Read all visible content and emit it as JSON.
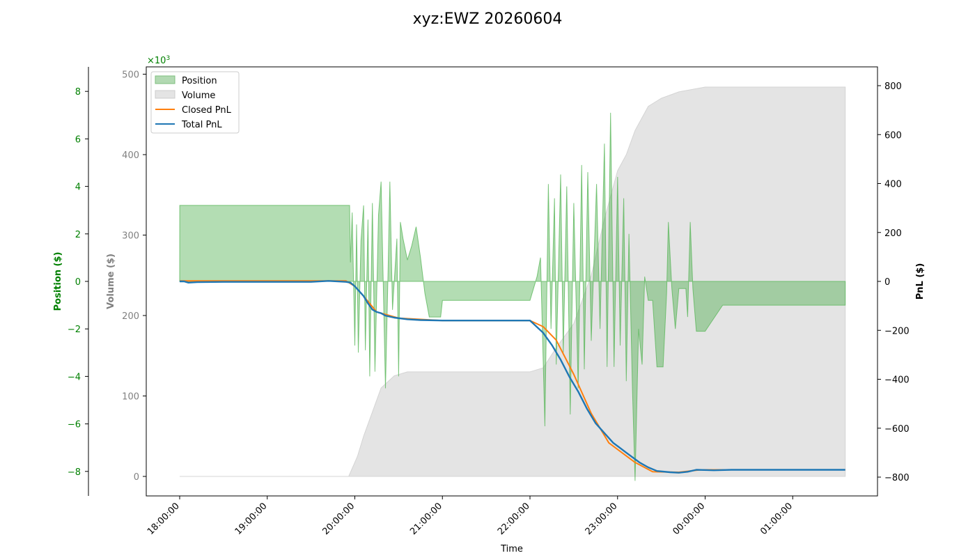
{
  "chart_data": {
    "type": "area",
    "title": "xyz:EWZ 20260604",
    "xlabel": "Time",
    "x_ticks": [
      "18:00:00",
      "19:00:00",
      "20:00:00",
      "21:00:00",
      "22:00:00",
      "23:00:00",
      "00:00:00",
      "01:00:00"
    ],
    "axes": {
      "position": {
        "label": "Position ($)",
        "ticks": [
          "8",
          "6",
          "4",
          "2",
          "0",
          "−2",
          "−4",
          "−6",
          "−8"
        ],
        "multiplier_label": "×10",
        "multiplier_exp": "3",
        "color": "#008000"
      },
      "volume": {
        "label": "Volume ($)",
        "ticks": [
          "500",
          "400",
          "300",
          "200",
          "100",
          "0"
        ],
        "color": "#808080"
      },
      "pnl": {
        "label": "PnL ($)",
        "ticks": [
          "800",
          "600",
          "400",
          "200",
          "0",
          "−200",
          "−400",
          "−600",
          "−800"
        ],
        "color": "#000000"
      }
    },
    "legend": {
      "placement": "upper-left",
      "items": [
        {
          "label": "Position",
          "kind": "patch",
          "fill": "#b2d9b2",
          "stroke": "#7fbf7f"
        },
        {
          "label": "Volume",
          "kind": "patch",
          "fill": "#e4e4e4",
          "stroke": "#cccccc"
        },
        {
          "label": "Closed PnL",
          "kind": "line",
          "color": "#ff7f0e"
        },
        {
          "label": "Total PnL",
          "kind": "line",
          "color": "#1f77b4"
        }
      ]
    },
    "series": [
      {
        "name": "Volume",
        "units": "volume_$",
        "color": "#e4e4e4",
        "points": [
          [
            0,
            0
          ],
          [
            1.93,
            0
          ],
          [
            1.97,
            10
          ],
          [
            2.03,
            25
          ],
          [
            2.1,
            50
          ],
          [
            2.2,
            80
          ],
          [
            2.3,
            110
          ],
          [
            2.45,
            125
          ],
          [
            2.6,
            130
          ],
          [
            3.0,
            130
          ],
          [
            4.0,
            130
          ],
          [
            4.15,
            135
          ],
          [
            4.3,
            160
          ],
          [
            4.5,
            190
          ],
          [
            4.7,
            250
          ],
          [
            4.85,
            320
          ],
          [
            5.0,
            380
          ],
          [
            5.1,
            400
          ],
          [
            5.2,
            430
          ],
          [
            5.35,
            460
          ],
          [
            5.5,
            470
          ],
          [
            5.7,
            478
          ],
          [
            6.0,
            484
          ],
          [
            7.6,
            484
          ]
        ]
      },
      {
        "name": "Position",
        "units": "position_k$",
        "color": "#b2d9b2",
        "points": [
          [
            0,
            0
          ],
          [
            0.001,
            3.2
          ],
          [
            1.94,
            3.2
          ],
          [
            1.95,
            0.8
          ],
          [
            1.97,
            2.9
          ],
          [
            2.0,
            -2.7
          ],
          [
            2.02,
            2.4
          ],
          [
            2.04,
            -3.0
          ],
          [
            2.07,
            1.7
          ],
          [
            2.1,
            3.2
          ],
          [
            2.12,
            -2.9
          ],
          [
            2.15,
            2.6
          ],
          [
            2.17,
            -4.0
          ],
          [
            2.2,
            3.3
          ],
          [
            2.23,
            -3.8
          ],
          [
            2.27,
            2.8
          ],
          [
            2.3,
            4.2
          ],
          [
            2.35,
            -4.5
          ],
          [
            2.38,
            0.5
          ],
          [
            2.4,
            4.2
          ],
          [
            2.43,
            -1.2
          ],
          [
            2.48,
            1.8
          ],
          [
            2.5,
            -4.0
          ],
          [
            2.52,
            2.5
          ],
          [
            2.55,
            1.8
          ],
          [
            2.6,
            0.9
          ],
          [
            2.65,
            1.5
          ],
          [
            2.7,
            2.3
          ],
          [
            2.75,
            1.0
          ],
          [
            2.8,
            -0.5
          ],
          [
            2.85,
            -1.5
          ],
          [
            2.98,
            -1.5
          ],
          [
            3.0,
            -0.8
          ],
          [
            3.2,
            -0.8
          ],
          [
            4.0,
            -0.8
          ],
          [
            4.08,
            0.2
          ],
          [
            4.12,
            1.0
          ],
          [
            4.17,
            -6.1
          ],
          [
            4.21,
            4.1
          ],
          [
            4.24,
            -2.0
          ],
          [
            4.28,
            3.5
          ],
          [
            4.3,
            -3.5
          ],
          [
            4.35,
            4.5
          ],
          [
            4.38,
            -3.0
          ],
          [
            4.42,
            4.0
          ],
          [
            4.46,
            -5.6
          ],
          [
            4.5,
            3.3
          ],
          [
            4.55,
            -4.5
          ],
          [
            4.59,
            4.9
          ],
          [
            4.62,
            -3.7
          ],
          [
            4.66,
            4.6
          ],
          [
            4.7,
            -2.5
          ],
          [
            4.76,
            4.1
          ],
          [
            4.8,
            -2.0
          ],
          [
            4.85,
            5.8
          ],
          [
            4.88,
            -3.6
          ],
          [
            4.92,
            7.1
          ],
          [
            4.96,
            -3.6
          ],
          [
            5.0,
            4.4
          ],
          [
            5.03,
            -2.7
          ],
          [
            5.07,
            3.5
          ],
          [
            5.1,
            -4.2
          ],
          [
            5.13,
            2.0
          ],
          [
            5.17,
            -4.5
          ],
          [
            5.2,
            -8.4
          ],
          [
            5.24,
            -2.0
          ],
          [
            5.28,
            -3.5
          ],
          [
            5.31,
            0.2
          ],
          [
            5.35,
            -0.8
          ],
          [
            5.4,
            -0.8
          ],
          [
            5.45,
            -3.6
          ],
          [
            5.52,
            -3.6
          ],
          [
            5.56,
            -0.5
          ],
          [
            5.58,
            2.5
          ],
          [
            5.62,
            -0.3
          ],
          [
            5.66,
            -2.0
          ],
          [
            5.7,
            -0.3
          ],
          [
            5.78,
            -0.3
          ],
          [
            5.8,
            -1.5
          ],
          [
            5.83,
            2.5
          ],
          [
            5.86,
            -0.3
          ],
          [
            5.9,
            -2.1
          ],
          [
            5.94,
            -2.1
          ],
          [
            6.0,
            -2.1
          ],
          [
            6.2,
            -1.0
          ],
          [
            6.6,
            -1.0
          ],
          [
            7.6,
            -1.0
          ]
        ]
      },
      {
        "name": "Closed PnL",
        "units": "pnl_$",
        "color": "#ff7f0e",
        "points": [
          [
            0,
            2
          ],
          [
            1.9,
            2
          ],
          [
            2.0,
            -20
          ],
          [
            2.1,
            -60
          ],
          [
            2.25,
            -125
          ],
          [
            2.5,
            -150
          ],
          [
            3.0,
            -160
          ],
          [
            4.0,
            -160
          ],
          [
            4.15,
            -185
          ],
          [
            4.3,
            -240
          ],
          [
            4.5,
            -380
          ],
          [
            4.7,
            -540
          ],
          [
            4.9,
            -660
          ],
          [
            5.2,
            -740
          ],
          [
            5.4,
            -778
          ],
          [
            5.7,
            -780
          ],
          [
            5.95,
            -770
          ],
          [
            7.6,
            -770
          ]
        ]
      },
      {
        "name": "Total PnL",
        "units": "pnl_$",
        "color": "#1f77b4",
        "points": [
          [
            0,
            0
          ],
          [
            0.05,
            0
          ],
          [
            0.1,
            -5
          ],
          [
            0.2,
            -3
          ],
          [
            0.5,
            -2
          ],
          [
            1.0,
            -2
          ],
          [
            1.5,
            -2
          ],
          [
            1.7,
            2
          ],
          [
            1.9,
            -2
          ],
          [
            1.95,
            -5
          ],
          [
            2.0,
            -20
          ],
          [
            2.05,
            -40
          ],
          [
            2.1,
            -60
          ],
          [
            2.15,
            -90
          ],
          [
            2.2,
            -115
          ],
          [
            2.25,
            -125
          ],
          [
            2.3,
            -130
          ],
          [
            2.35,
            -140
          ],
          [
            2.45,
            -148
          ],
          [
            2.6,
            -155
          ],
          [
            2.75,
            -158
          ],
          [
            3.0,
            -160
          ],
          [
            3.5,
            -160
          ],
          [
            4.0,
            -160
          ],
          [
            4.15,
            -210
          ],
          [
            4.25,
            -260
          ],
          [
            4.35,
            -320
          ],
          [
            4.45,
            -390
          ],
          [
            4.55,
            -450
          ],
          [
            4.65,
            -520
          ],
          [
            4.75,
            -580
          ],
          [
            4.85,
            -620
          ],
          [
            4.95,
            -660
          ],
          [
            5.1,
            -700
          ],
          [
            5.25,
            -740
          ],
          [
            5.35,
            -760
          ],
          [
            5.45,
            -775
          ],
          [
            5.6,
            -780
          ],
          [
            5.7,
            -782
          ],
          [
            5.8,
            -778
          ],
          [
            5.9,
            -770
          ],
          [
            6.1,
            -772
          ],
          [
            6.3,
            -770
          ],
          [
            7.0,
            -770
          ],
          [
            7.6,
            -770
          ]
        ]
      }
    ]
  }
}
